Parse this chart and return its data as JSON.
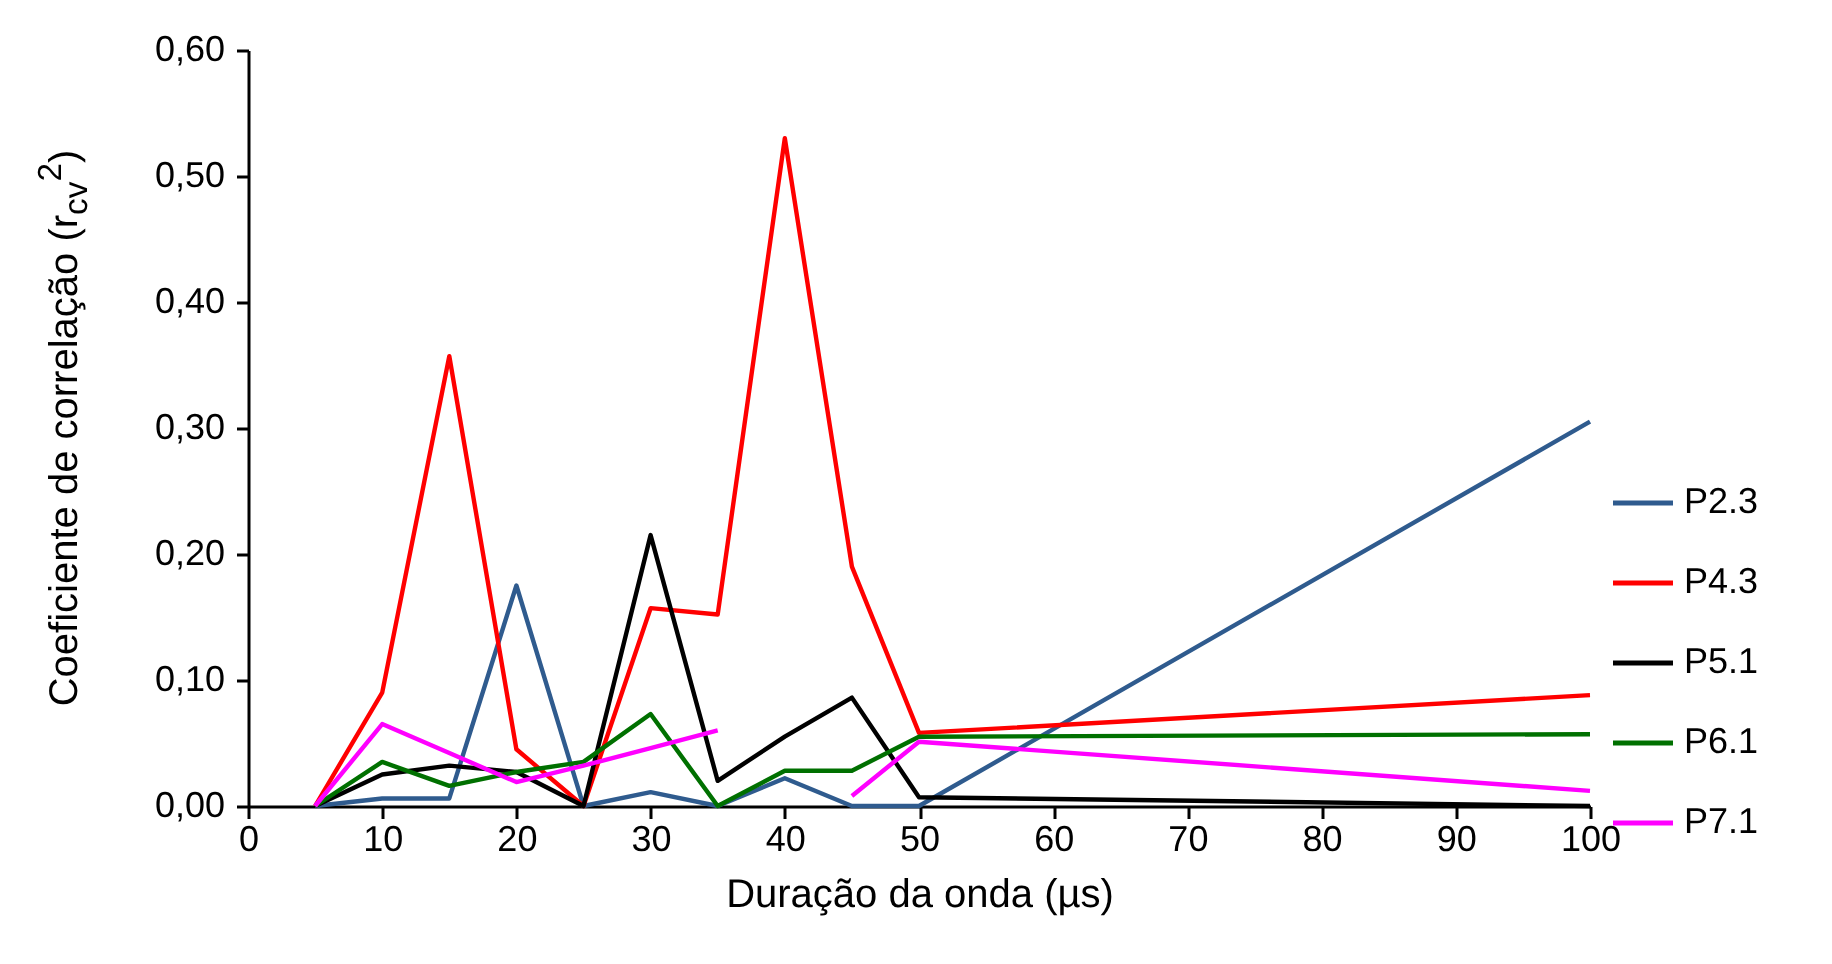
{
  "chart_data": {
    "type": "line",
    "xlabel": "Duração da onda (µs)",
    "ylabel": "Coeficiente de correlação (r$_{cv}$$^{2}$)",
    "x": [
      5,
      10,
      15,
      20,
      25,
      30,
      35,
      40,
      45,
      50,
      100
    ],
    "series": [
      {
        "name": "P2.3",
        "color": "#2f5b8e",
        "values": [
          0,
          0.006,
          0.006,
          0.175,
          0,
          0.011,
          0,
          0.022,
          0,
          0,
          0.305
        ]
      },
      {
        "name": "P4.3",
        "color": "#ff0000",
        "values": [
          0,
          0.09,
          0.357,
          0.045,
          0,
          0.157,
          0.152,
          0.53,
          0.19,
          0.058,
          0.088
        ]
      },
      {
        "name": "P5.1",
        "color": "#000000",
        "values": [
          0,
          0.025,
          0.032,
          0.027,
          0,
          0.215,
          0.02,
          0.055,
          0.086,
          0.007,
          0
        ]
      },
      {
        "name": "P6.1",
        "color": "#007000",
        "values": [
          0,
          0.035,
          0.016,
          0.027,
          0.035,
          0.073,
          0,
          0.028,
          0.028,
          0.055,
          0.057
        ]
      },
      {
        "name": "P7.1",
        "color": "#ff00ff",
        "values": [
          0,
          0.065,
          0.042,
          0.019,
          0.032,
          0.046,
          0.06,
          null,
          0.008,
          0.051,
          0.012
        ]
      }
    ],
    "xlim": [
      0,
      100
    ],
    "xticks": [
      0,
      10,
      20,
      30,
      40,
      50,
      60,
      70,
      80,
      90,
      100
    ],
    "ylim": [
      0,
      0.6
    ],
    "yticks": [
      {
        "value": 0,
        "label": "0,00"
      },
      {
        "value": 0.1,
        "label": "0,10"
      },
      {
        "value": 0.2,
        "label": "0,20"
      },
      {
        "value": 0.3,
        "label": "0,30"
      },
      {
        "value": 0.4,
        "label": "0,40"
      },
      {
        "value": 0.5,
        "label": "0,50"
      },
      {
        "value": 0.6,
        "label": "0,60"
      }
    ],
    "legend": "right",
    "grid": false,
    "marker": "none",
    "line_style": "solid"
  }
}
